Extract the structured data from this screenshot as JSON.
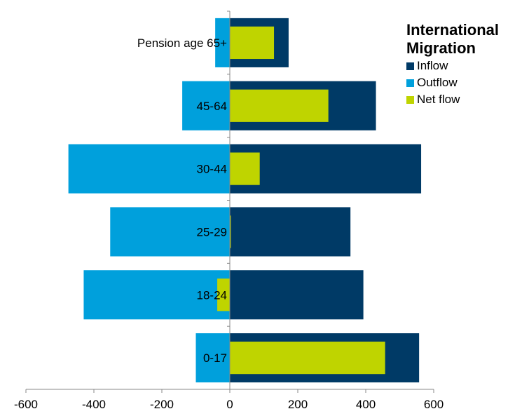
{
  "chart_data": {
    "type": "bar",
    "orientation": "horizontal",
    "categories": [
      "Pension age 65+",
      "45-64",
      "30-44",
      "25-29",
      "18-24",
      "0-17"
    ],
    "series": [
      {
        "name": "Inflow",
        "color": "#003A66",
        "values": [
          173,
          430,
          563,
          355,
          393,
          557
        ]
      },
      {
        "name": "Outflow",
        "color": "#00A0DC",
        "values": [
          -43,
          -140,
          -475,
          -352,
          -430,
          -100
        ]
      },
      {
        "name": "Net flow",
        "color": "#BFD400",
        "values": [
          130,
          290,
          88,
          3,
          -37,
          457
        ]
      }
    ],
    "xlim": [
      -600,
      600
    ],
    "xticks": [
      "-600",
      "-400",
      "-200",
      "0",
      "200",
      "400",
      "600"
    ],
    "legend_title_lines": [
      "International",
      "Migration"
    ],
    "legend_position": "top-right",
    "grid": false
  }
}
